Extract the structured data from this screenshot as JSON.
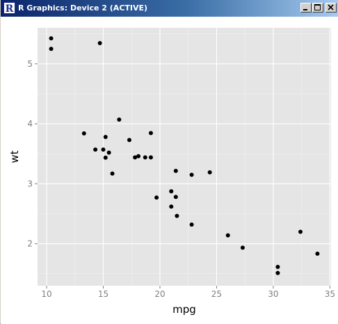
{
  "window": {
    "title": "R Graphics: Device 2 (ACTIVE)",
    "icon": "r-logo-icon",
    "buttons": {
      "minimize": "minimize-icon",
      "maximize": "maximize-icon",
      "close": "close-icon"
    }
  },
  "colors": {
    "panel_background": "#e5e5e5",
    "grid_major": "#ffffff",
    "grid_minor": "#f2f2f2",
    "points": "#000000",
    "tick_label": "#7f7f7f"
  },
  "chart_data": {
    "type": "scatter",
    "xlabel": "mpg",
    "ylabel": "wt",
    "xlim": [
      9.2,
      35.1
    ],
    "ylim": [
      1.3,
      5.6
    ],
    "xticks": [
      10,
      15,
      20,
      25,
      30,
      35
    ],
    "yticks": [
      2,
      3,
      4,
      5
    ],
    "grid": true,
    "points": [
      {
        "x": 21.0,
        "y": 2.62
      },
      {
        "x": 21.0,
        "y": 2.875
      },
      {
        "x": 22.8,
        "y": 2.32
      },
      {
        "x": 21.4,
        "y": 3.215
      },
      {
        "x": 18.7,
        "y": 3.44
      },
      {
        "x": 18.1,
        "y": 3.46
      },
      {
        "x": 14.3,
        "y": 3.57
      },
      {
        "x": 24.4,
        "y": 3.19
      },
      {
        "x": 22.8,
        "y": 3.15
      },
      {
        "x": 19.2,
        "y": 3.44
      },
      {
        "x": 17.8,
        "y": 3.44
      },
      {
        "x": 16.4,
        "y": 4.07
      },
      {
        "x": 17.3,
        "y": 3.73
      },
      {
        "x": 15.2,
        "y": 3.78
      },
      {
        "x": 10.4,
        "y": 5.25
      },
      {
        "x": 10.4,
        "y": 5.424
      },
      {
        "x": 14.7,
        "y": 5.345
      },
      {
        "x": 32.4,
        "y": 2.2
      },
      {
        "x": 30.4,
        "y": 1.615
      },
      {
        "x": 33.9,
        "y": 1.835
      },
      {
        "x": 21.5,
        "y": 2.465
      },
      {
        "x": 15.5,
        "y": 3.52
      },
      {
        "x": 15.2,
        "y": 3.435
      },
      {
        "x": 13.3,
        "y": 3.84
      },
      {
        "x": 19.2,
        "y": 3.845
      },
      {
        "x": 27.3,
        "y": 1.935
      },
      {
        "x": 26.0,
        "y": 2.14
      },
      {
        "x": 30.4,
        "y": 1.513
      },
      {
        "x": 15.8,
        "y": 3.17
      },
      {
        "x": 19.7,
        "y": 2.77
      },
      {
        "x": 15.0,
        "y": 3.57
      },
      {
        "x": 21.4,
        "y": 2.78
      }
    ]
  }
}
